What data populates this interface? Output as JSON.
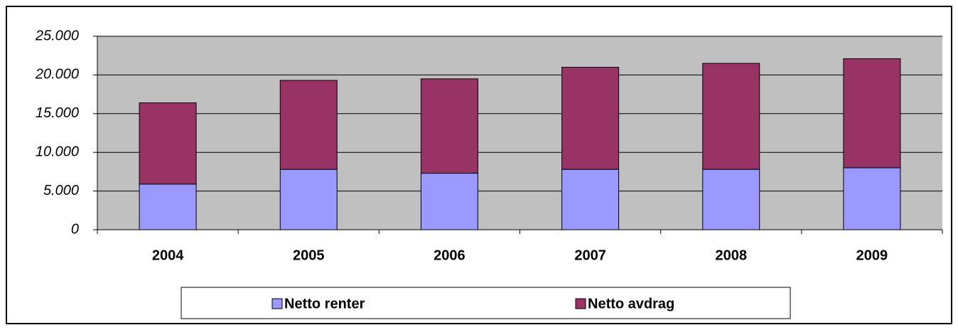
{
  "chart_data": {
    "type": "stacked_bar",
    "categories": [
      "2004",
      "2005",
      "2006",
      "2007",
      "2008",
      "2009"
    ],
    "series": [
      {
        "name": "Netto renter",
        "color": "#9999ff",
        "values": [
          5900,
          7800,
          7300,
          7800,
          7800,
          8000
        ]
      },
      {
        "name": "Netto avdrag",
        "color": "#993366",
        "values": [
          10500,
          11500,
          12200,
          13200,
          13700,
          14100
        ]
      }
    ],
    "ylim": [
      0,
      25000
    ],
    "yticks": [
      0,
      {
        "value": 5000,
        "label": "5.000"
      },
      {
        "value": 10000,
        "label": "10.000"
      },
      {
        "value": 15000,
        "label": "15.000"
      },
      {
        "value": 20000,
        "label": "20.000"
      },
      {
        "value": 25000,
        "label": "25.000"
      }
    ],
    "grid": true,
    "legend": "bottom",
    "plot_background": "#c0c0c0"
  }
}
